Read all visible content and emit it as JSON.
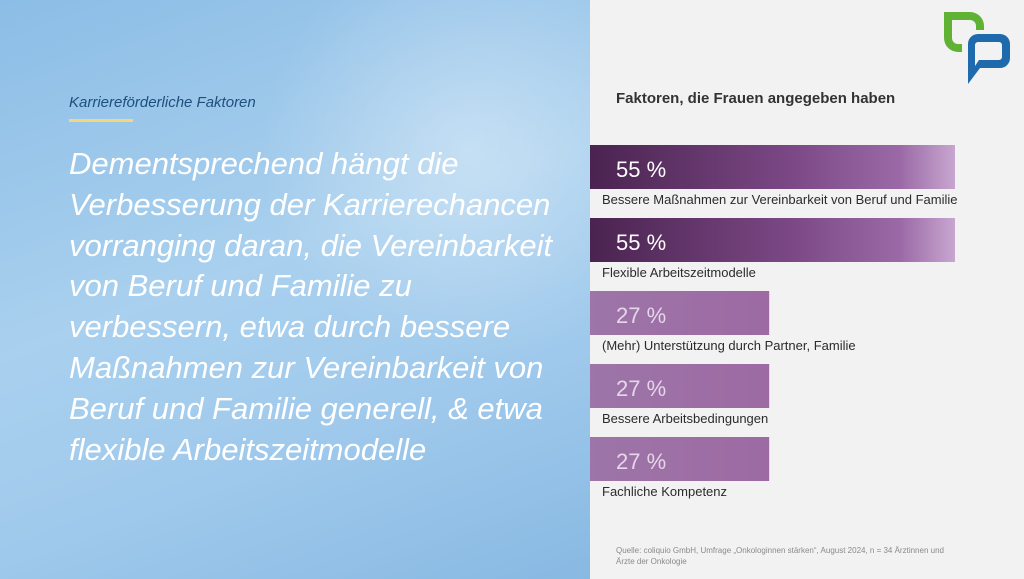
{
  "left_panel": {
    "kicker": "Karriereförderliche Faktoren",
    "headline": "Dementsprechend hängt die Verbesserung der Karrierechancen vorranging daran, die Vereinbarkeit von Beruf und Familie zu verbessern, etwa durch bessere Maßnahmen zur Vereinbarkeit von Beruf und Familie generell, & etwa flexible Arbeitszeitmodelle"
  },
  "logo": {
    "icon": "speech-bubbles-logo-icon",
    "colors": [
      "#5fb234",
      "#1f69ad"
    ]
  },
  "chart_data": {
    "type": "bar",
    "orientation": "horizontal",
    "title": "Faktoren, die Frauen angegeben haben",
    "categories": [
      "Bessere Maßnahmen zur Vereinbarkeit von Beruf und Familie",
      "Flexible Arbeitszeitmodelle",
      "(Mehr) Unterstützung durch Partner, Familie",
      "Bessere Arbeitsbedingungen",
      "Fachliche Kompetenz"
    ],
    "values": [
      55,
      55,
      27,
      27,
      27
    ],
    "value_labels": [
      "55 %",
      "55 %",
      "27 %",
      "27 %",
      "27 %"
    ],
    "unit": "%",
    "xlim": [
      0,
      100
    ],
    "grid": false,
    "legend": "none",
    "colors": {
      "strong": "#4a2350",
      "mid": "#9b6aa6",
      "light": "#c8a6d0",
      "text_strong": "#ffffff",
      "text_light": "#e6d6ea"
    }
  },
  "source": "Quelle: coliquio GmbH, Umfrage „Onkologinnen stärken“, August 2024, n = 34 Ärztinnen und Ärzte der Onkologie"
}
